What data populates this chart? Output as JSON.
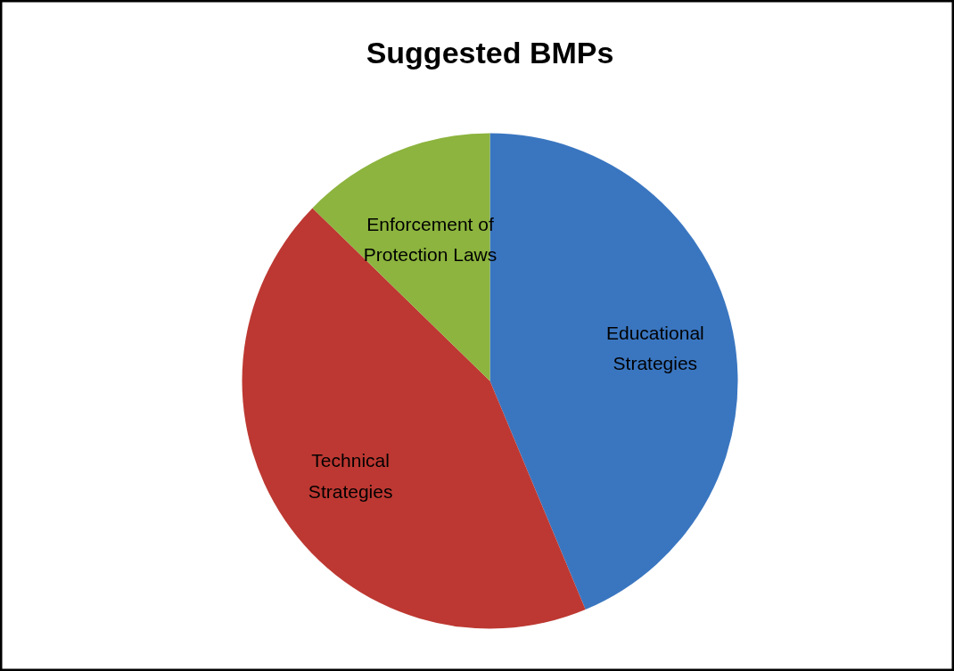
{
  "chart_data": {
    "type": "pie",
    "title": "Suggested BMPs",
    "categories": [
      "Educational\nStrategies",
      "Technical\nStrategies",
      "Enforcement of\nProtection Laws"
    ],
    "values": [
      43.7,
      43.6,
      12.7
    ],
    "colors": [
      "#3a76c0",
      "#bd3832",
      "#8cb43e"
    ]
  }
}
